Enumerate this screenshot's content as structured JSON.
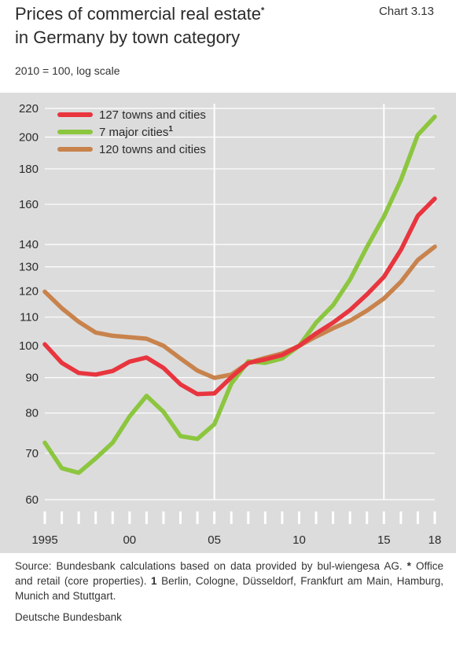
{
  "header": {
    "title": "Prices of commercial real estate",
    "title_line2": "in Germany by town category",
    "title_marker": "*",
    "chart_id": "Chart 3.13",
    "subtitle": "2010 = 100, log scale"
  },
  "chart_data": {
    "type": "line",
    "title": "Prices of commercial real estate* in Germany by town category",
    "subtitle": "2010 = 100, log scale",
    "y_scale": "log",
    "ylim": [
      60,
      220
    ],
    "y_ticks": [
      60,
      70,
      80,
      90,
      100,
      110,
      120,
      130,
      140,
      160,
      180,
      200,
      220
    ],
    "xlim": [
      1995,
      2018
    ],
    "x_tick_labels": [
      {
        "year": 1995,
        "label": "1995"
      },
      {
        "year": 2000,
        "label": "00"
      },
      {
        "year": 2005,
        "label": "05"
      },
      {
        "year": 2010,
        "label": "10"
      },
      {
        "year": 2015,
        "label": "15"
      },
      {
        "year": 2018,
        "label": "18"
      }
    ],
    "vertical_reference_lines": [
      2005,
      2015
    ],
    "grid": "horizontal",
    "legend_position": "top-left",
    "x": [
      1995,
      1996,
      1997,
      1998,
      1999,
      2000,
      2001,
      2002,
      2003,
      2004,
      2005,
      2006,
      2007,
      2008,
      2009,
      2010,
      2011,
      2012,
      2013,
      2014,
      2015,
      2016,
      2017,
      2018
    ],
    "series": [
      {
        "name": "127 towns and cities",
        "color": "#e8353e",
        "values": [
          100.5,
          94.5,
          91.4,
          90.9,
          92.0,
          94.9,
          96.2,
          92.9,
          88.0,
          85.2,
          85.4,
          90.1,
          94.5,
          95.6,
          97.0,
          100.0,
          104.2,
          108.0,
          112.6,
          118.6,
          125.7,
          137.5,
          154.0,
          163.0
        ]
      },
      {
        "name": "7 major cities",
        "name_footnote": "1",
        "color": "#8cc63f",
        "values": [
          72.5,
          66.6,
          65.6,
          68.8,
          72.5,
          79.1,
          84.7,
          80.3,
          74.1,
          73.4,
          77.1,
          88.2,
          95.0,
          94.5,
          95.9,
          100.0,
          108.0,
          114.4,
          124.6,
          138.8,
          153.6,
          173.5,
          201.5,
          214.0
        ]
      },
      {
        "name": "120 towns and cities",
        "color": "#c8834d",
        "values": [
          119.7,
          113.3,
          108.3,
          104.5,
          103.4,
          102.9,
          102.4,
          100.0,
          95.9,
          92.1,
          89.9,
          90.9,
          94.5,
          96.1,
          97.5,
          100.0,
          103.1,
          106.0,
          108.7,
          112.4,
          117.0,
          123.7,
          133.0,
          139.0
        ]
      }
    ]
  },
  "footer": {
    "source_prefix": "Source: Bundesbank calculations based on data provided by bul-wiengesa AG.",
    "note_marker": "*",
    "note_text": "Office and retail (core properties).",
    "footnote_marker": "1",
    "footnote_text": "Berlin, Cologne, Düsseldorf, Frankfurt am Main, Hamburg, Munich and Stuttgart.",
    "publisher": "Deutsche Bundesbank"
  }
}
